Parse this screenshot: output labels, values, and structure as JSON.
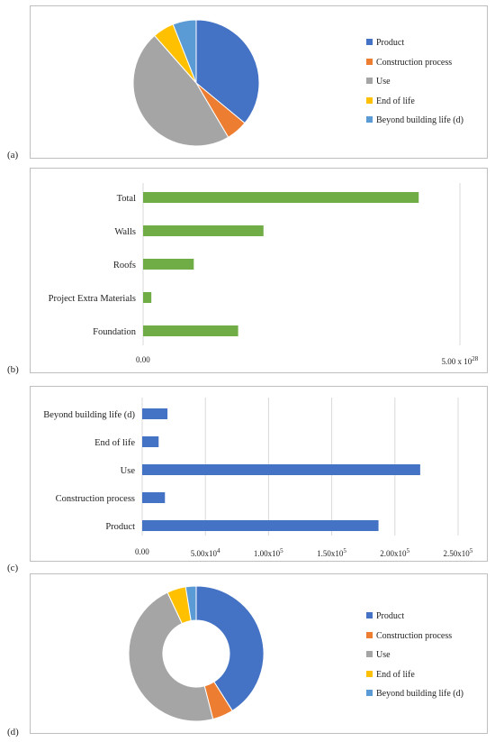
{
  "labels": {
    "a": "(a)",
    "b": "(b)",
    "c": "(c)",
    "d": "(d)"
  },
  "colors": {
    "product": "#4472c4",
    "construction": "#ed7d31",
    "use": "#a5a5a5",
    "end": "#ffc000",
    "beyond": "#5b9bd5",
    "green": "#70ad47"
  },
  "chart_data": [
    {
      "panel": "a",
      "type": "pie",
      "categories": [
        "Product",
        "Construction process",
        "Use",
        "End of life",
        "Beyond building life (d)"
      ],
      "values": [
        36,
        5.5,
        47,
        5.5,
        6
      ],
      "legend": "right"
    },
    {
      "panel": "b",
      "type": "bar",
      "orientation": "horizontal",
      "categories": [
        "Total",
        "Walls",
        "Roofs",
        "Project Extra Materials",
        "Foundation"
      ],
      "values": [
        4.35e+28,
        1.9e+28,
        8e+27,
        1.3e+27,
        1.5e+28
      ],
      "x_ticks": [
        {
          "value": 0,
          "mantissa": "0.00",
          "exp": ""
        },
        {
          "value": 5e+28,
          "mantissa": "5.00 x 10",
          "exp": "28"
        }
      ],
      "xlim": [
        0,
        5e+28
      ],
      "grid": true
    },
    {
      "panel": "c",
      "type": "bar",
      "orientation": "horizontal",
      "categories": [
        "Beyond building life (d)",
        "End of life",
        "Use",
        "Construction process",
        "Product"
      ],
      "values": [
        20000,
        13000,
        220000,
        18000,
        187000
      ],
      "x_ticks": [
        {
          "value": 0,
          "mantissa": "0.00",
          "exp": ""
        },
        {
          "value": 50000,
          "mantissa": "5.00x10",
          "exp": "4"
        },
        {
          "value": 100000,
          "mantissa": "1.00x10",
          "exp": "5"
        },
        {
          "value": 150000,
          "mantissa": "1.50x10",
          "exp": "5"
        },
        {
          "value": 200000,
          "mantissa": "2.00x10",
          "exp": "5"
        },
        {
          "value": 250000,
          "mantissa": "2.50x10",
          "exp": "5"
        }
      ],
      "xlim": [
        0,
        250000
      ],
      "grid": true
    },
    {
      "panel": "d",
      "type": "pie",
      "donut": true,
      "categories": [
        "Product",
        "Construction process",
        "Use",
        "End of life",
        "Beyond building life (d)"
      ],
      "values": [
        41,
        5,
        47,
        4.5,
        2.5
      ],
      "legend": "right"
    }
  ]
}
